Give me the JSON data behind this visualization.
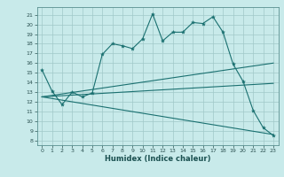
{
  "xlabel": "Humidex (Indice chaleur)",
  "ylabel": "",
  "bg_color": "#c8eaea",
  "grid_color": "#a0c8c8",
  "line_color": "#1a7070",
  "ylim": [
    7.5,
    21.8
  ],
  "xlim": [
    -0.5,
    23.5
  ],
  "yticks": [
    8,
    9,
    10,
    11,
    12,
    13,
    14,
    15,
    16,
    17,
    18,
    19,
    20,
    21
  ],
  "xticks": [
    0,
    1,
    2,
    3,
    4,
    5,
    6,
    7,
    8,
    9,
    10,
    11,
    12,
    13,
    14,
    15,
    16,
    17,
    18,
    19,
    20,
    21,
    22,
    23
  ],
  "line1_x": [
    0,
    1,
    2,
    3,
    4,
    5,
    6,
    7,
    8,
    9,
    10,
    11,
    12,
    13,
    14,
    15,
    16,
    17,
    18,
    19,
    20,
    21,
    22,
    23
  ],
  "line1_y": [
    15.3,
    13.1,
    11.7,
    13.0,
    12.5,
    12.9,
    16.9,
    18.0,
    17.8,
    17.5,
    18.5,
    21.1,
    18.3,
    19.2,
    19.2,
    20.2,
    20.1,
    20.8,
    19.2,
    15.9,
    14.1,
    11.1,
    9.3,
    8.5
  ],
  "line2_x": [
    0,
    23
  ],
  "line2_y": [
    12.5,
    16.0
  ],
  "line3_x": [
    0,
    23
  ],
  "line3_y": [
    12.5,
    8.6
  ],
  "line4_x": [
    0,
    23
  ],
  "line4_y": [
    12.5,
    13.9
  ],
  "title_fontsize": 6.5,
  "xlabel_fontsize": 6.0,
  "tick_fontsize": 4.5
}
